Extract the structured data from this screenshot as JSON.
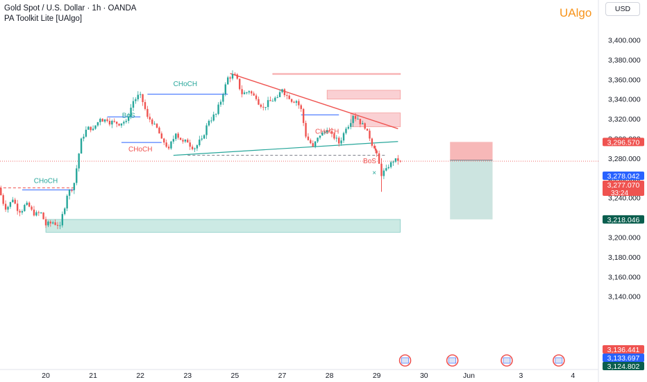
{
  "header": {
    "symbol_line": "Gold Spot / U.S. Dollar · 1h · OANDA",
    "indicator_line": "PA Toolkit Lite [UAlgo]"
  },
  "brand": "UAlgo",
  "currency_button": "USD",
  "colors": {
    "up": "#26a69a",
    "down": "#ef5350",
    "blue_line": "#2962ff",
    "supply_zone": "#f8bcc0",
    "demand_zone": "#b7e1d8",
    "label_blue": "#2962ff",
    "label_red": "#ef5350",
    "label_green": "#0a5e4e"
  },
  "chart_data": {
    "type": "candlestick",
    "ylim": [
      3126,
      3414
    ],
    "y_ticks": [
      "3,140.000",
      "3,160.000",
      "3,180.000",
      "3,200.000",
      "3,220.000",
      "3,240.000",
      "3,260.000",
      "3,280.000",
      "3,300.000",
      "3,320.000",
      "3,340.000",
      "3,360.000",
      "3,380.000",
      "3,400.000"
    ],
    "x_ticks": [
      {
        "label": "20",
        "day": 20
      },
      {
        "label": "21",
        "day": 21
      },
      {
        "label": "22",
        "day": 22
      },
      {
        "label": "23",
        "day": 23
      },
      {
        "label": "25",
        "day": 24
      },
      {
        "label": "27",
        "day": 25
      },
      {
        "label": "28",
        "day": 26
      },
      {
        "label": "29",
        "day": 27
      },
      {
        "label": "30",
        "day": 28
      },
      {
        "label": "Jun",
        "day": 28.95
      },
      {
        "label": "3",
        "day": 30.05
      },
      {
        "label": "4",
        "day": 31.15
      }
    ],
    "price_path": [
      [
        19.0,
        3250
      ],
      [
        19.15,
        3228
      ],
      [
        19.3,
        3238
      ],
      [
        19.45,
        3225
      ],
      [
        19.6,
        3235
      ],
      [
        19.75,
        3222
      ],
      [
        19.9,
        3225
      ],
      [
        20.0,
        3212
      ],
      [
        20.15,
        3215
      ],
      [
        20.3,
        3212
      ],
      [
        20.45,
        3242
      ],
      [
        20.6,
        3255
      ],
      [
        20.75,
        3300
      ],
      [
        20.9,
        3312
      ],
      [
        21.0,
        3310
      ],
      [
        21.15,
        3320
      ],
      [
        21.3,
        3318
      ],
      [
        21.5,
        3315
      ],
      [
        21.7,
        3318
      ],
      [
        21.85,
        3338
      ],
      [
        22.0,
        3345
      ],
      [
        22.15,
        3322
      ],
      [
        22.3,
        3315
      ],
      [
        22.45,
        3300
      ],
      [
        22.6,
        3290
      ],
      [
        22.75,
        3305
      ],
      [
        22.9,
        3297
      ],
      [
        23.0,
        3296
      ],
      [
        23.15,
        3290
      ],
      [
        23.3,
        3300
      ],
      [
        23.45,
        3318
      ],
      [
        23.6,
        3325
      ],
      [
        23.75,
        3345
      ],
      [
        23.85,
        3362
      ],
      [
        24.0,
        3365
      ],
      [
        24.15,
        3345
      ],
      [
        24.3,
        3348
      ],
      [
        24.45,
        3340
      ],
      [
        24.6,
        3332
      ],
      [
        24.75,
        3338
      ],
      [
        24.9,
        3342
      ],
      [
        25.0,
        3350
      ],
      [
        25.15,
        3340
      ],
      [
        25.3,
        3338
      ],
      [
        25.4,
        3330
      ],
      [
        25.5,
        3302
      ],
      [
        25.65,
        3292
      ],
      [
        25.8,
        3303
      ],
      [
        25.95,
        3308
      ],
      [
        26.05,
        3305
      ],
      [
        26.2,
        3295
      ],
      [
        26.35,
        3310
      ],
      [
        26.5,
        3323
      ],
      [
        26.6,
        3320
      ],
      [
        26.75,
        3310
      ],
      [
        26.85,
        3300
      ],
      [
        26.95,
        3290
      ],
      [
        27.0,
        3285
      ],
      [
        27.1,
        3262
      ],
      [
        27.2,
        3270
      ],
      [
        27.3,
        3276
      ],
      [
        27.4,
        3280
      ],
      [
        27.5,
        3277
      ]
    ],
    "price_labels": [
      {
        "text": "3,296.570",
        "price": 3296.57,
        "color": "#ef5350"
      },
      {
        "text": "3,278.042",
        "price": 3278.042,
        "color": "#2962ff"
      },
      {
        "text": "3,277.070",
        "price": 3277.07,
        "color": "#ef5350",
        "sub": "33:24"
      },
      {
        "text": "3,218.046",
        "price": 3218.046,
        "color": "#0a5e4e"
      },
      {
        "text": "3,136.441",
        "price": 3136.441,
        "color": "#ef5350"
      },
      {
        "text": "3,133.697",
        "price": 3133.697,
        "color": "#2962ff"
      },
      {
        "text": "3,124.802",
        "price": 3124.802,
        "color": "#0a5e4e"
      }
    ],
    "annotations": [
      {
        "text": "CHoCH",
        "day": 20.0,
        "price": 3255,
        "color": "#26a69a"
      },
      {
        "text": "BoS",
        "day": 21.75,
        "price": 3321,
        "color": "#26a69a"
      },
      {
        "text": "CHoCH",
        "day": 22.95,
        "price": 3353,
        "color": "#26a69a"
      },
      {
        "text": "CHoCH",
        "day": 22.0,
        "price": 3287,
        "color": "#ef5350"
      },
      {
        "text": "CHoCH",
        "day": 25.95,
        "price": 3305,
        "color": "#ef5350"
      },
      {
        "text": "BoS",
        "day": 26.85,
        "price": 3275,
        "color": "#ef5350"
      }
    ],
    "zones": [
      {
        "type": "supply",
        "day0": 24.8,
        "day1": 27.5,
        "top": 3366,
        "bottom": 3365
      },
      {
        "type": "supply",
        "day0": 25.95,
        "day1": 27.5,
        "top": 3349,
        "bottom": 3340
      },
      {
        "type": "supply",
        "day0": 26.45,
        "day1": 27.5,
        "top": 3326,
        "bottom": 3312
      },
      {
        "type": "demand",
        "day0": 20.0,
        "day1": 27.5,
        "top": 3218,
        "bottom": 3205
      }
    ],
    "position": {
      "entry": 3278.042,
      "stop": 3296.57,
      "target": 3218.046,
      "day0": 28.55,
      "day1": 29.45
    }
  }
}
